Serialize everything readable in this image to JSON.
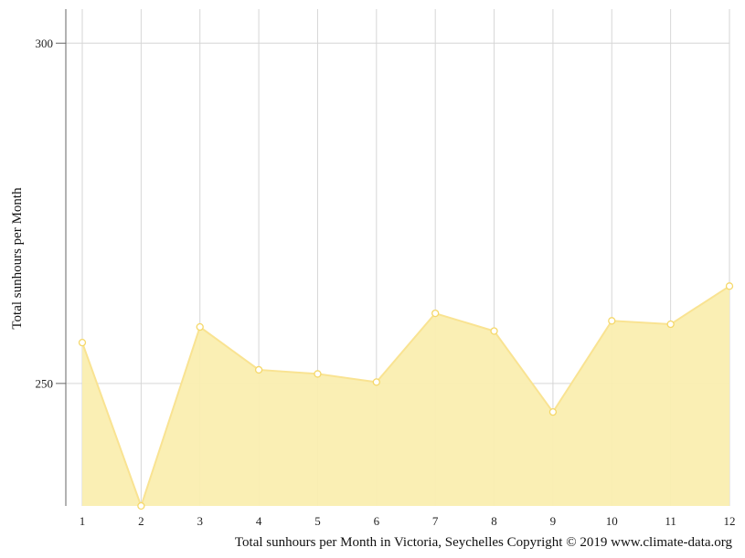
{
  "chart_data": {
    "type": "area",
    "x": [
      1,
      2,
      3,
      4,
      5,
      6,
      7,
      8,
      9,
      10,
      11,
      12
    ],
    "x_tick_labels": [
      "1",
      "2",
      "3",
      "4",
      "5",
      "6",
      "7",
      "8",
      "9",
      "10",
      "11",
      "12"
    ],
    "series": [
      {
        "values": [
          256,
          232,
          258.3,
          252,
          251.4,
          250.2,
          260.3,
          257.7,
          245.8,
          259.2,
          258.7,
          264.3
        ]
      }
    ],
    "ylim": [
      232,
      305
    ],
    "y_ticks": [
      250,
      300
    ],
    "y_tick_labels": [
      "250",
      "300"
    ],
    "ylabel": "Total sunhours per Month",
    "xlabel": "",
    "caption": "Total sunhours per Month in Victoria, Seychelles Copyright © 2019 www.climate-data.org",
    "grid": true,
    "colors": {
      "fill": "#faeeb0",
      "line": "#f9e392",
      "marker_fill": "#ffffff",
      "marker_stroke": "#f5d86a",
      "grid": "#d6d6d6",
      "axis": "#666666"
    }
  }
}
